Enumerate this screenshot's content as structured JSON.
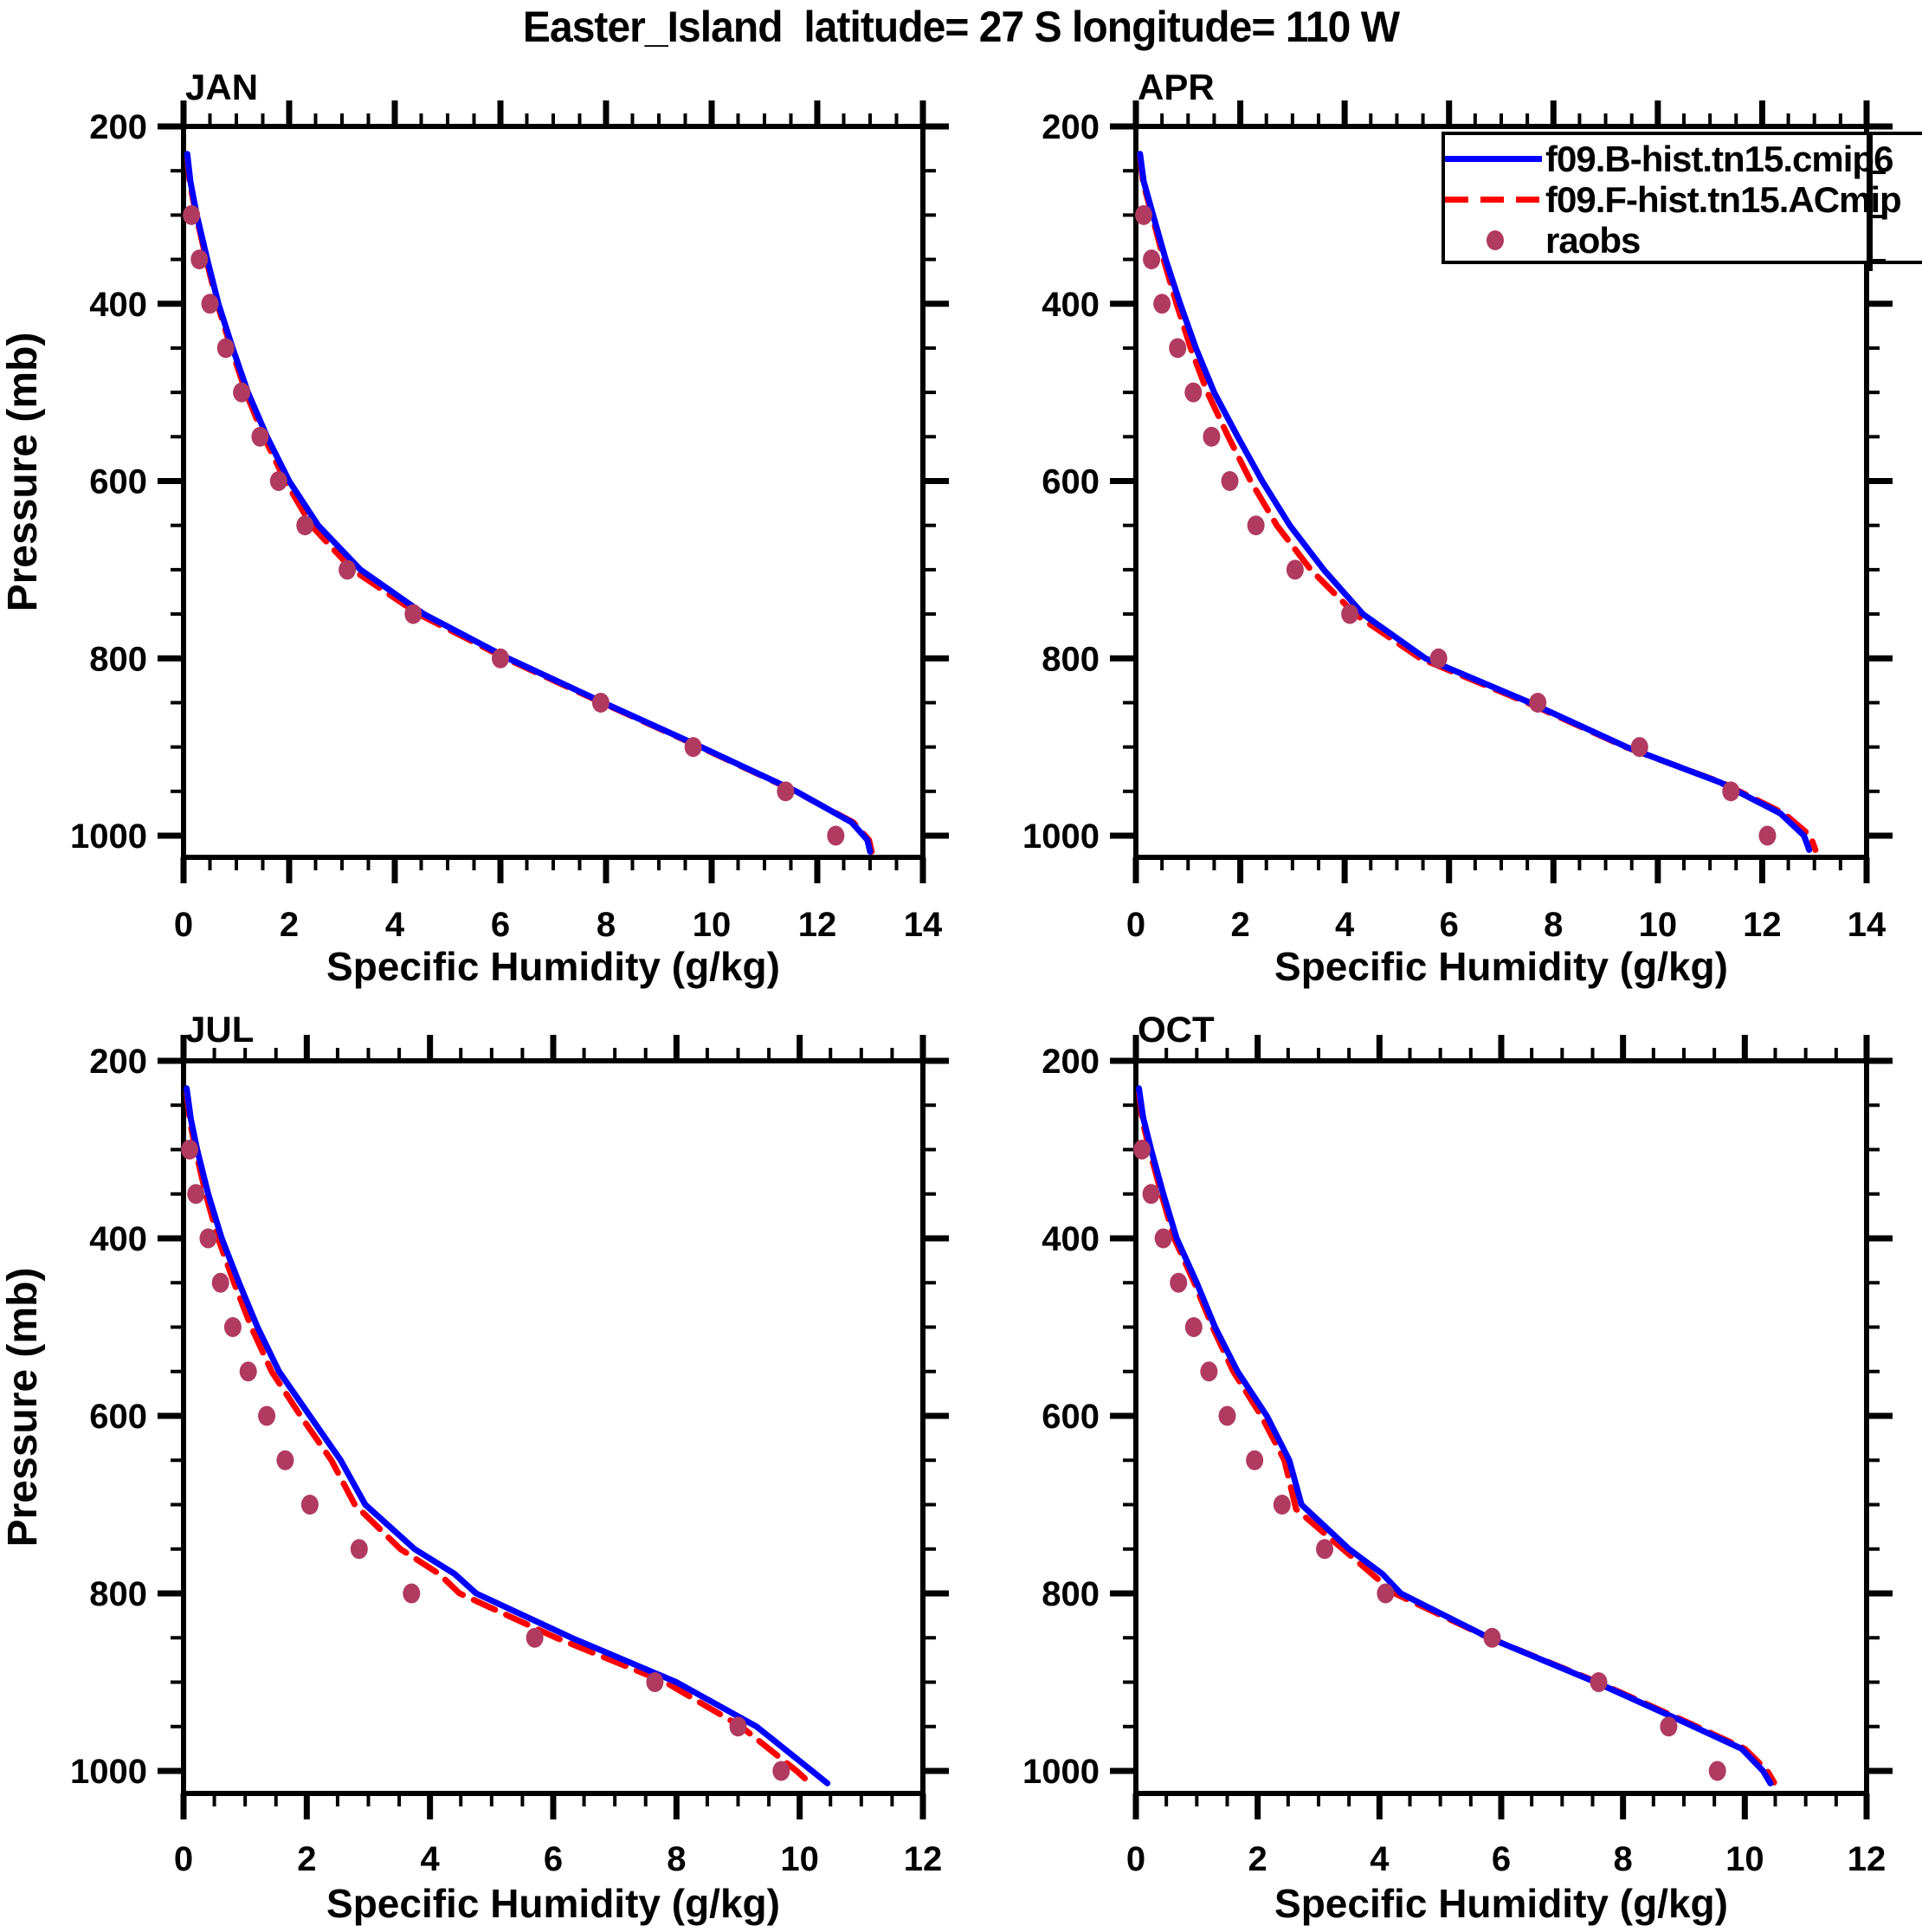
{
  "title": "Easter_Island  latitude= 27 S longitude= 110 W",
  "ylabel": "Pressure (mb)",
  "xlabel": "Specific Humidity (g/kg)",
  "colors": {
    "model_b": "#0000ff",
    "model_f": "#ff0000",
    "raobs": "#b03a60",
    "axis": "#000000",
    "background": "#ffffff"
  },
  "legend": {
    "entries": [
      {
        "label": "f09.B-hist.tn15.cmip6",
        "style": "solid",
        "color_key": "model_b"
      },
      {
        "label": "f09.F-hist.tn15.ACmip",
        "style": "dashed",
        "color_key": "model_f"
      },
      {
        "label": "raobs",
        "style": "dot",
        "color_key": "raobs"
      }
    ]
  },
  "chart_data": [
    {
      "type": "line",
      "month": "JAN",
      "xlabel": "Specific Humidity (g/kg)",
      "ylabel": "Pressure (mb)",
      "xlim": [
        0,
        14
      ],
      "ylim": [
        200,
        1025
      ],
      "xticks": [
        0,
        2,
        4,
        6,
        8,
        10,
        12,
        14
      ],
      "x_minor_step": 0.5,
      "yticks": [
        200,
        400,
        600,
        800,
        1000
      ],
      "y_minor_step": 50,
      "grid": false,
      "series": [
        {
          "name": "f09.B-hist.tn15.cmip6",
          "style": "solid",
          "color_key": "model_b",
          "points": [
            [
              0.07,
              231
            ],
            [
              0.13,
              262
            ],
            [
              0.25,
              300
            ],
            [
              0.45,
              350
            ],
            [
              0.66,
              400
            ],
            [
              0.93,
              450
            ],
            [
              1.22,
              500
            ],
            [
              1.58,
              550
            ],
            [
              2.0,
              600
            ],
            [
              2.55,
              650
            ],
            [
              3.35,
              700
            ],
            [
              4.55,
              750
            ],
            [
              6.15,
              800
            ],
            [
              7.95,
              850
            ],
            [
              9.8,
              900
            ],
            [
              11.6,
              950
            ],
            [
              12.65,
              985
            ],
            [
              12.95,
              1005
            ],
            [
              13.0,
              1018
            ]
          ]
        },
        {
          "name": "f09.F-hist.tn15.ACmip",
          "style": "dashed",
          "color_key": "model_f",
          "points": [
            [
              0.07,
              234
            ],
            [
              0.12,
              264
            ],
            [
              0.24,
              300
            ],
            [
              0.43,
              350
            ],
            [
              0.64,
              400
            ],
            [
              0.9,
              450
            ],
            [
              1.18,
              500
            ],
            [
              1.52,
              550
            ],
            [
              1.93,
              600
            ],
            [
              2.42,
              650
            ],
            [
              3.2,
              700
            ],
            [
              4.45,
              750
            ],
            [
              6.1,
              800
            ],
            [
              7.92,
              850
            ],
            [
              9.78,
              900
            ],
            [
              11.58,
              950
            ],
            [
              12.68,
              985
            ],
            [
              12.98,
              1005
            ],
            [
              13.03,
              1018
            ]
          ]
        },
        {
          "name": "raobs",
          "style": "dots",
          "color_key": "raobs",
          "points": [
            [
              0.15,
              300
            ],
            [
              0.3,
              350
            ],
            [
              0.5,
              400
            ],
            [
              0.8,
              450
            ],
            [
              1.1,
              500
            ],
            [
              1.45,
              550
            ],
            [
              1.8,
              600
            ],
            [
              2.3,
              650
            ],
            [
              3.1,
              700
            ],
            [
              4.35,
              750
            ],
            [
              6.0,
              800
            ],
            [
              7.9,
              850
            ],
            [
              9.65,
              900
            ],
            [
              11.4,
              950
            ],
            [
              12.35,
              1000
            ]
          ]
        }
      ]
    },
    {
      "type": "line",
      "month": "APR",
      "xlabel": "Specific Humidity (g/kg)",
      "ylabel": "Pressure (mb)",
      "xlim": [
        0,
        14
      ],
      "ylim": [
        200,
        1025
      ],
      "xticks": [
        0,
        2,
        4,
        6,
        8,
        10,
        12,
        14
      ],
      "x_minor_step": 0.5,
      "yticks": [
        200,
        400,
        600,
        800,
        1000
      ],
      "y_minor_step": 50,
      "grid": false,
      "series": [
        {
          "name": "f09.B-hist.tn15.cmip6",
          "style": "solid",
          "color_key": "model_b",
          "points": [
            [
              0.08,
              231
            ],
            [
              0.15,
              262
            ],
            [
              0.33,
              300
            ],
            [
              0.57,
              350
            ],
            [
              0.85,
              400
            ],
            [
              1.15,
              450
            ],
            [
              1.5,
              500
            ],
            [
              1.95,
              550
            ],
            [
              2.42,
              600
            ],
            [
              2.95,
              650
            ],
            [
              3.6,
              700
            ],
            [
              4.35,
              750
            ],
            [
              5.55,
              800
            ],
            [
              7.55,
              850
            ],
            [
              9.4,
              900
            ],
            [
              11.2,
              940
            ],
            [
              12.35,
              975
            ],
            [
              12.8,
              1000
            ],
            [
              12.9,
              1016
            ]
          ]
        },
        {
          "name": "f09.F-hist.tn15.ACmip",
          "style": "dashed",
          "color_key": "model_f",
          "points": [
            [
              0.08,
              234
            ],
            [
              0.14,
              264
            ],
            [
              0.31,
              300
            ],
            [
              0.53,
              350
            ],
            [
              0.78,
              400
            ],
            [
              1.05,
              450
            ],
            [
              1.37,
              500
            ],
            [
              1.77,
              550
            ],
            [
              2.2,
              600
            ],
            [
              2.7,
              650
            ],
            [
              3.35,
              700
            ],
            [
              4.2,
              750
            ],
            [
              5.45,
              800
            ],
            [
              7.5,
              850
            ],
            [
              9.38,
              900
            ],
            [
              11.22,
              940
            ],
            [
              12.42,
              975
            ],
            [
              12.92,
              1000
            ],
            [
              13.02,
              1016
            ]
          ]
        },
        {
          "name": "raobs",
          "style": "dots",
          "color_key": "raobs",
          "points": [
            [
              0.15,
              300
            ],
            [
              0.3,
              350
            ],
            [
              0.5,
              400
            ],
            [
              0.8,
              450
            ],
            [
              1.1,
              500
            ],
            [
              1.45,
              550
            ],
            [
              1.8,
              600
            ],
            [
              2.3,
              650
            ],
            [
              3.05,
              700
            ],
            [
              4.1,
              750
            ],
            [
              5.8,
              800
            ],
            [
              7.7,
              850
            ],
            [
              9.65,
              900
            ],
            [
              11.4,
              950
            ],
            [
              12.1,
              1000
            ]
          ]
        }
      ]
    },
    {
      "type": "line",
      "month": "JUL",
      "xlabel": "Specific Humidity (g/kg)",
      "ylabel": "Pressure (mb)",
      "xlim": [
        0,
        12
      ],
      "ylim": [
        200,
        1025
      ],
      "xticks": [
        0,
        2,
        4,
        6,
        8,
        10,
        12
      ],
      "x_minor_step": 0.5,
      "yticks": [
        200,
        400,
        600,
        800,
        1000
      ],
      "y_minor_step": 50,
      "grid": false,
      "series": [
        {
          "name": "f09.B-hist.tn15.cmip6",
          "style": "solid",
          "color_key": "model_b",
          "points": [
            [
              0.05,
              231
            ],
            [
              0.12,
              266
            ],
            [
              0.22,
              300
            ],
            [
              0.4,
              350
            ],
            [
              0.62,
              400
            ],
            [
              0.9,
              450
            ],
            [
              1.2,
              500
            ],
            [
              1.55,
              550
            ],
            [
              2.05,
              600
            ],
            [
              2.55,
              650
            ],
            [
              2.95,
              700
            ],
            [
              3.75,
              750
            ],
            [
              4.4,
              778
            ],
            [
              4.75,
              800
            ],
            [
              6.3,
              850
            ],
            [
              8.0,
              900
            ],
            [
              9.3,
              950
            ],
            [
              10.2,
              1000
            ],
            [
              10.45,
              1014
            ]
          ]
        },
        {
          "name": "f09.F-hist.tn15.ACmip",
          "style": "dashed",
          "color_key": "model_f",
          "points": [
            [
              0.05,
              236
            ],
            [
              0.11,
              270
            ],
            [
              0.2,
              302
            ],
            [
              0.36,
              350
            ],
            [
              0.56,
              400
            ],
            [
              0.82,
              450
            ],
            [
              1.1,
              500
            ],
            [
              1.43,
              550
            ],
            [
              1.9,
              600
            ],
            [
              2.4,
              650
            ],
            [
              2.78,
              700
            ],
            [
              3.52,
              750
            ],
            [
              4.15,
              778
            ],
            [
              4.48,
              800
            ],
            [
              6.05,
              850
            ],
            [
              7.82,
              900
            ],
            [
              9.05,
              950
            ],
            [
              9.95,
              1000
            ],
            [
              10.17,
              1014
            ]
          ]
        },
        {
          "name": "raobs",
          "style": "dots",
          "color_key": "raobs",
          "points": [
            [
              0.1,
              300
            ],
            [
              0.2,
              350
            ],
            [
              0.4,
              400
            ],
            [
              0.6,
              450
            ],
            [
              0.8,
              500
            ],
            [
              1.05,
              550
            ],
            [
              1.35,
              600
            ],
            [
              1.65,
              650
            ],
            [
              2.05,
              700
            ],
            [
              2.85,
              750
            ],
            [
              3.7,
              800
            ],
            [
              5.7,
              850
            ],
            [
              7.65,
              900
            ],
            [
              9.0,
              950
            ],
            [
              9.7,
              1000
            ]
          ]
        }
      ]
    },
    {
      "type": "line",
      "month": "OCT",
      "xlabel": "Specific Humidity (g/kg)",
      "ylabel": "Pressure (mb)",
      "xlim": [
        0,
        12
      ],
      "ylim": [
        200,
        1025
      ],
      "xticks": [
        0,
        2,
        4,
        6,
        8,
        10,
        12
      ],
      "x_minor_step": 0.5,
      "yticks": [
        200,
        400,
        600,
        800,
        1000
      ],
      "y_minor_step": 50,
      "grid": false,
      "series": [
        {
          "name": "f09.B-hist.tn15.cmip6",
          "style": "solid",
          "color_key": "model_b",
          "points": [
            [
              0.05,
              231
            ],
            [
              0.12,
              264
            ],
            [
              0.25,
              300
            ],
            [
              0.45,
              350
            ],
            [
              0.67,
              400
            ],
            [
              1.0,
              450
            ],
            [
              1.3,
              500
            ],
            [
              1.67,
              550
            ],
            [
              2.15,
              600
            ],
            [
              2.52,
              650
            ],
            [
              2.72,
              700
            ],
            [
              3.5,
              750
            ],
            [
              4.05,
              778
            ],
            [
              4.35,
              800
            ],
            [
              5.8,
              850
            ],
            [
              7.55,
              900
            ],
            [
              9.0,
              945
            ],
            [
              9.95,
              975
            ],
            [
              10.3,
              1000
            ],
            [
              10.42,
              1014
            ]
          ]
        },
        {
          "name": "f09.F-hist.tn15.ACmip",
          "style": "dashed",
          "color_key": "model_f",
          "points": [
            [
              0.05,
              236
            ],
            [
              0.11,
              268
            ],
            [
              0.23,
              302
            ],
            [
              0.42,
              350
            ],
            [
              0.63,
              400
            ],
            [
              0.96,
              450
            ],
            [
              1.26,
              500
            ],
            [
              1.6,
              550
            ],
            [
              2.06,
              600
            ],
            [
              2.44,
              650
            ],
            [
              2.63,
              705
            ],
            [
              3.4,
              750
            ],
            [
              4.25,
              800
            ],
            [
              5.8,
              850
            ],
            [
              7.58,
              900
            ],
            [
              9.05,
              945
            ],
            [
              10.0,
              975
            ],
            [
              10.37,
              1000
            ],
            [
              10.48,
              1013
            ]
          ]
        },
        {
          "name": "raobs",
          "style": "dots",
          "color_key": "raobs",
          "points": [
            [
              0.1,
              300
            ],
            [
              0.25,
              350
            ],
            [
              0.45,
              400
            ],
            [
              0.7,
              450
            ],
            [
              0.95,
              500
            ],
            [
              1.2,
              550
            ],
            [
              1.5,
              600
            ],
            [
              1.95,
              650
            ],
            [
              2.4,
              700
            ],
            [
              3.1,
              750
            ],
            [
              4.1,
              800
            ],
            [
              5.85,
              850
            ],
            [
              7.6,
              900
            ],
            [
              8.75,
              950
            ],
            [
              9.55,
              1000
            ]
          ]
        }
      ]
    }
  ]
}
